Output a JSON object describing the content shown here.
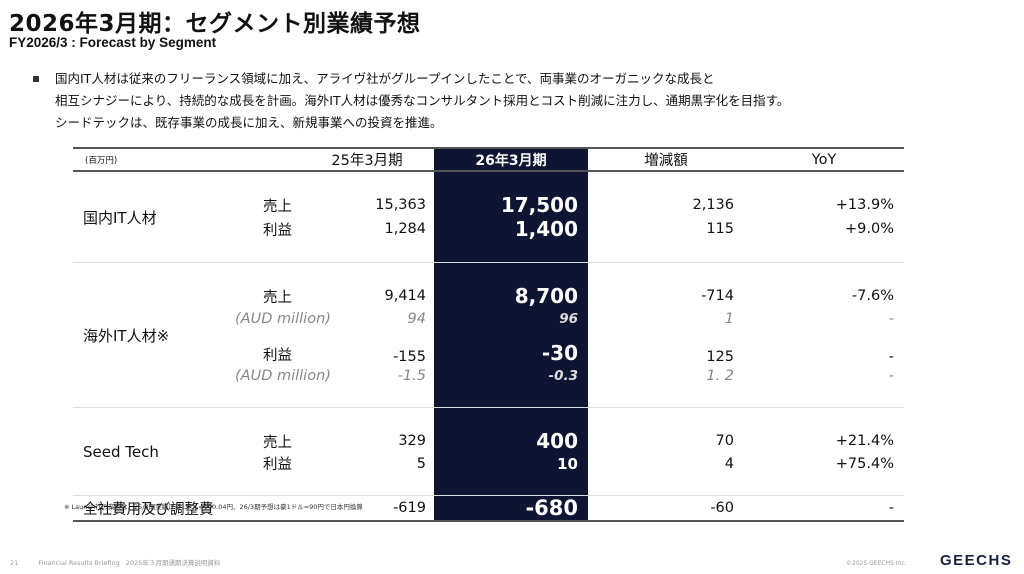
{
  "title": "2026年3月期：セグメント別業績予想",
  "subtitle": "FY2026/3 : Forecast by Segment",
  "bullet_lines": [
    "国内IT人材は従来のフリーランス領域に加え、アライヴ社がグループインしたことで、両事業のオーガニックな成長と",
    "相互シナジーにより、持続的な成長を計画。海外IT人材は優秀なコンサルタント採用とコスト削減に注力し、通期黒字化を目指す。",
    "シードテックは、既存事業の成長に加え、新規事業への投資を推進。"
  ],
  "table": {
    "unit": "(百万円)",
    "headers": [
      "25年3月期",
      "26年3月期",
      "増減額",
      "YoY"
    ],
    "domestic": {
      "label": "国内IT人材",
      "sales": {
        "label": "売上",
        "prev": "15,363",
        "curr": "17,500",
        "diff": "2,136",
        "yoy": "+13.9%"
      },
      "profit": {
        "label": "利益",
        "prev": "1,284",
        "curr": "1,400",
        "diff": "115",
        "yoy": "+9.0%"
      }
    },
    "overseas": {
      "label": "海外IT人材※",
      "sales": {
        "label": "売上",
        "prev": "9,414",
        "curr": "8,700",
        "diff": "-714",
        "yoy": "-7.6%"
      },
      "sales_aud": {
        "label": "(AUD million)",
        "prev": "94",
        "curr": "96",
        "diff": "1",
        "yoy": "-"
      },
      "profit": {
        "label": "利益",
        "prev": "-155",
        "curr": "-30",
        "diff": "125",
        "yoy": "-"
      },
      "profit_aud": {
        "label": "(AUD million)",
        "prev": "-1.5",
        "curr": "-0.3",
        "diff": "1. 2",
        "yoy": "-"
      }
    },
    "seedtech": {
      "label": "Seed Tech",
      "sales": {
        "label": "売上",
        "prev": "329",
        "curr": "400",
        "diff": "70",
        "yoy": "+21.4%"
      },
      "profit": {
        "label": "利益",
        "prev": "5",
        "curr": "10",
        "diff": "4",
        "yoy": "+75.4%"
      }
    },
    "corporate": {
      "label": "全社費用及び調整費",
      "prev": "-619",
      "curr": "-680",
      "diff": "-60",
      "yoy": "-"
    }
  },
  "note": "※ Launch社の業績は、25/3期実績は豪1ドル=100.04円、26/3期予想は豪1ドル=90円で日本円換算",
  "footer": {
    "page": "21",
    "doc_en": "Financial Results Briefing",
    "doc_jp": "2025年３月期通期決算説明資料",
    "copyright": "©2025 GEECHS Inc.",
    "logo": "GEECHS"
  }
}
